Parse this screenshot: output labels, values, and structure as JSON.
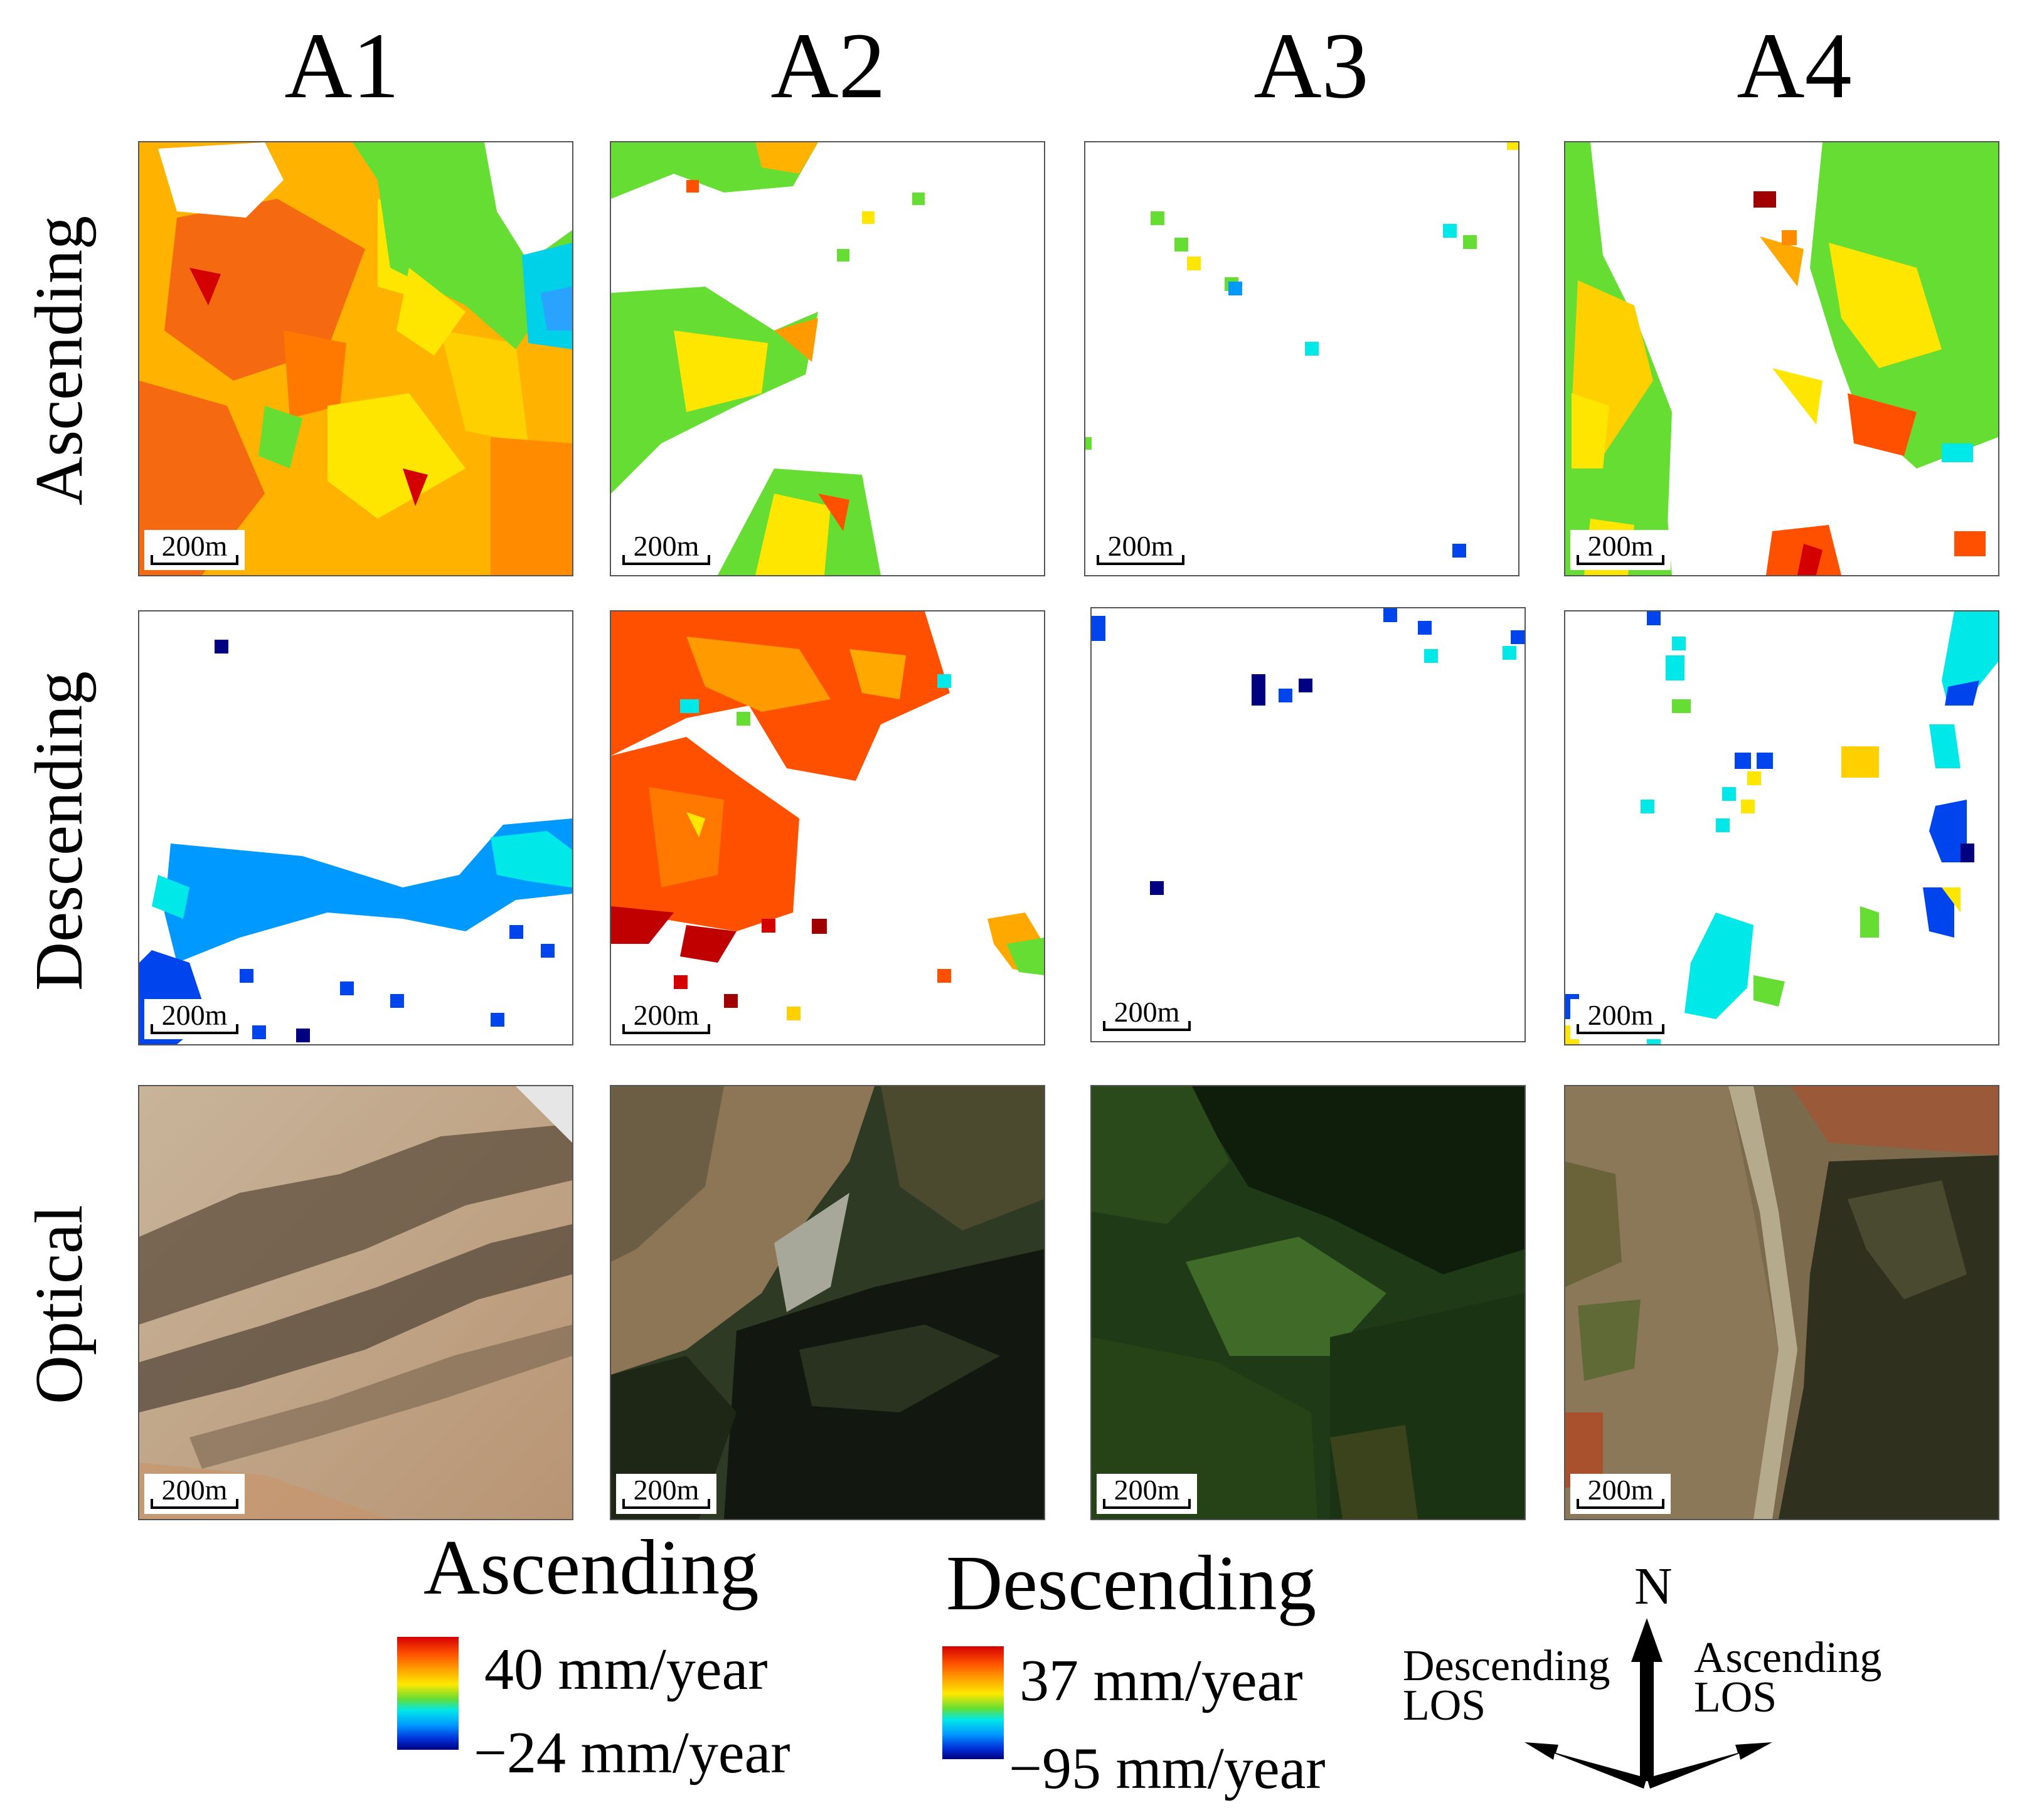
{
  "columns": [
    "A1",
    "A2",
    "A3",
    "A4"
  ],
  "rows": [
    "Ascending",
    "Descending",
    "Optical"
  ],
  "scale_bar_label": "200m",
  "legend": {
    "ascending": {
      "title": "Ascending",
      "max": "40 mm/year",
      "min": "−24 mm/year"
    },
    "descending": {
      "title": "Descending",
      "max": "37 mm/year",
      "min": "−95 mm/year"
    }
  },
  "compass": {
    "north": "N",
    "descending_los": [
      "Descending",
      "LOS"
    ],
    "ascending_los": [
      "Ascending",
      "LOS"
    ]
  },
  "colors": {
    "ramp": [
      "#d40000",
      "#ff5000",
      "#ffa800",
      "#ffe800",
      "#66dd33",
      "#00e8e8",
      "#0099ff",
      "#0044ee",
      "#000080"
    ]
  }
}
